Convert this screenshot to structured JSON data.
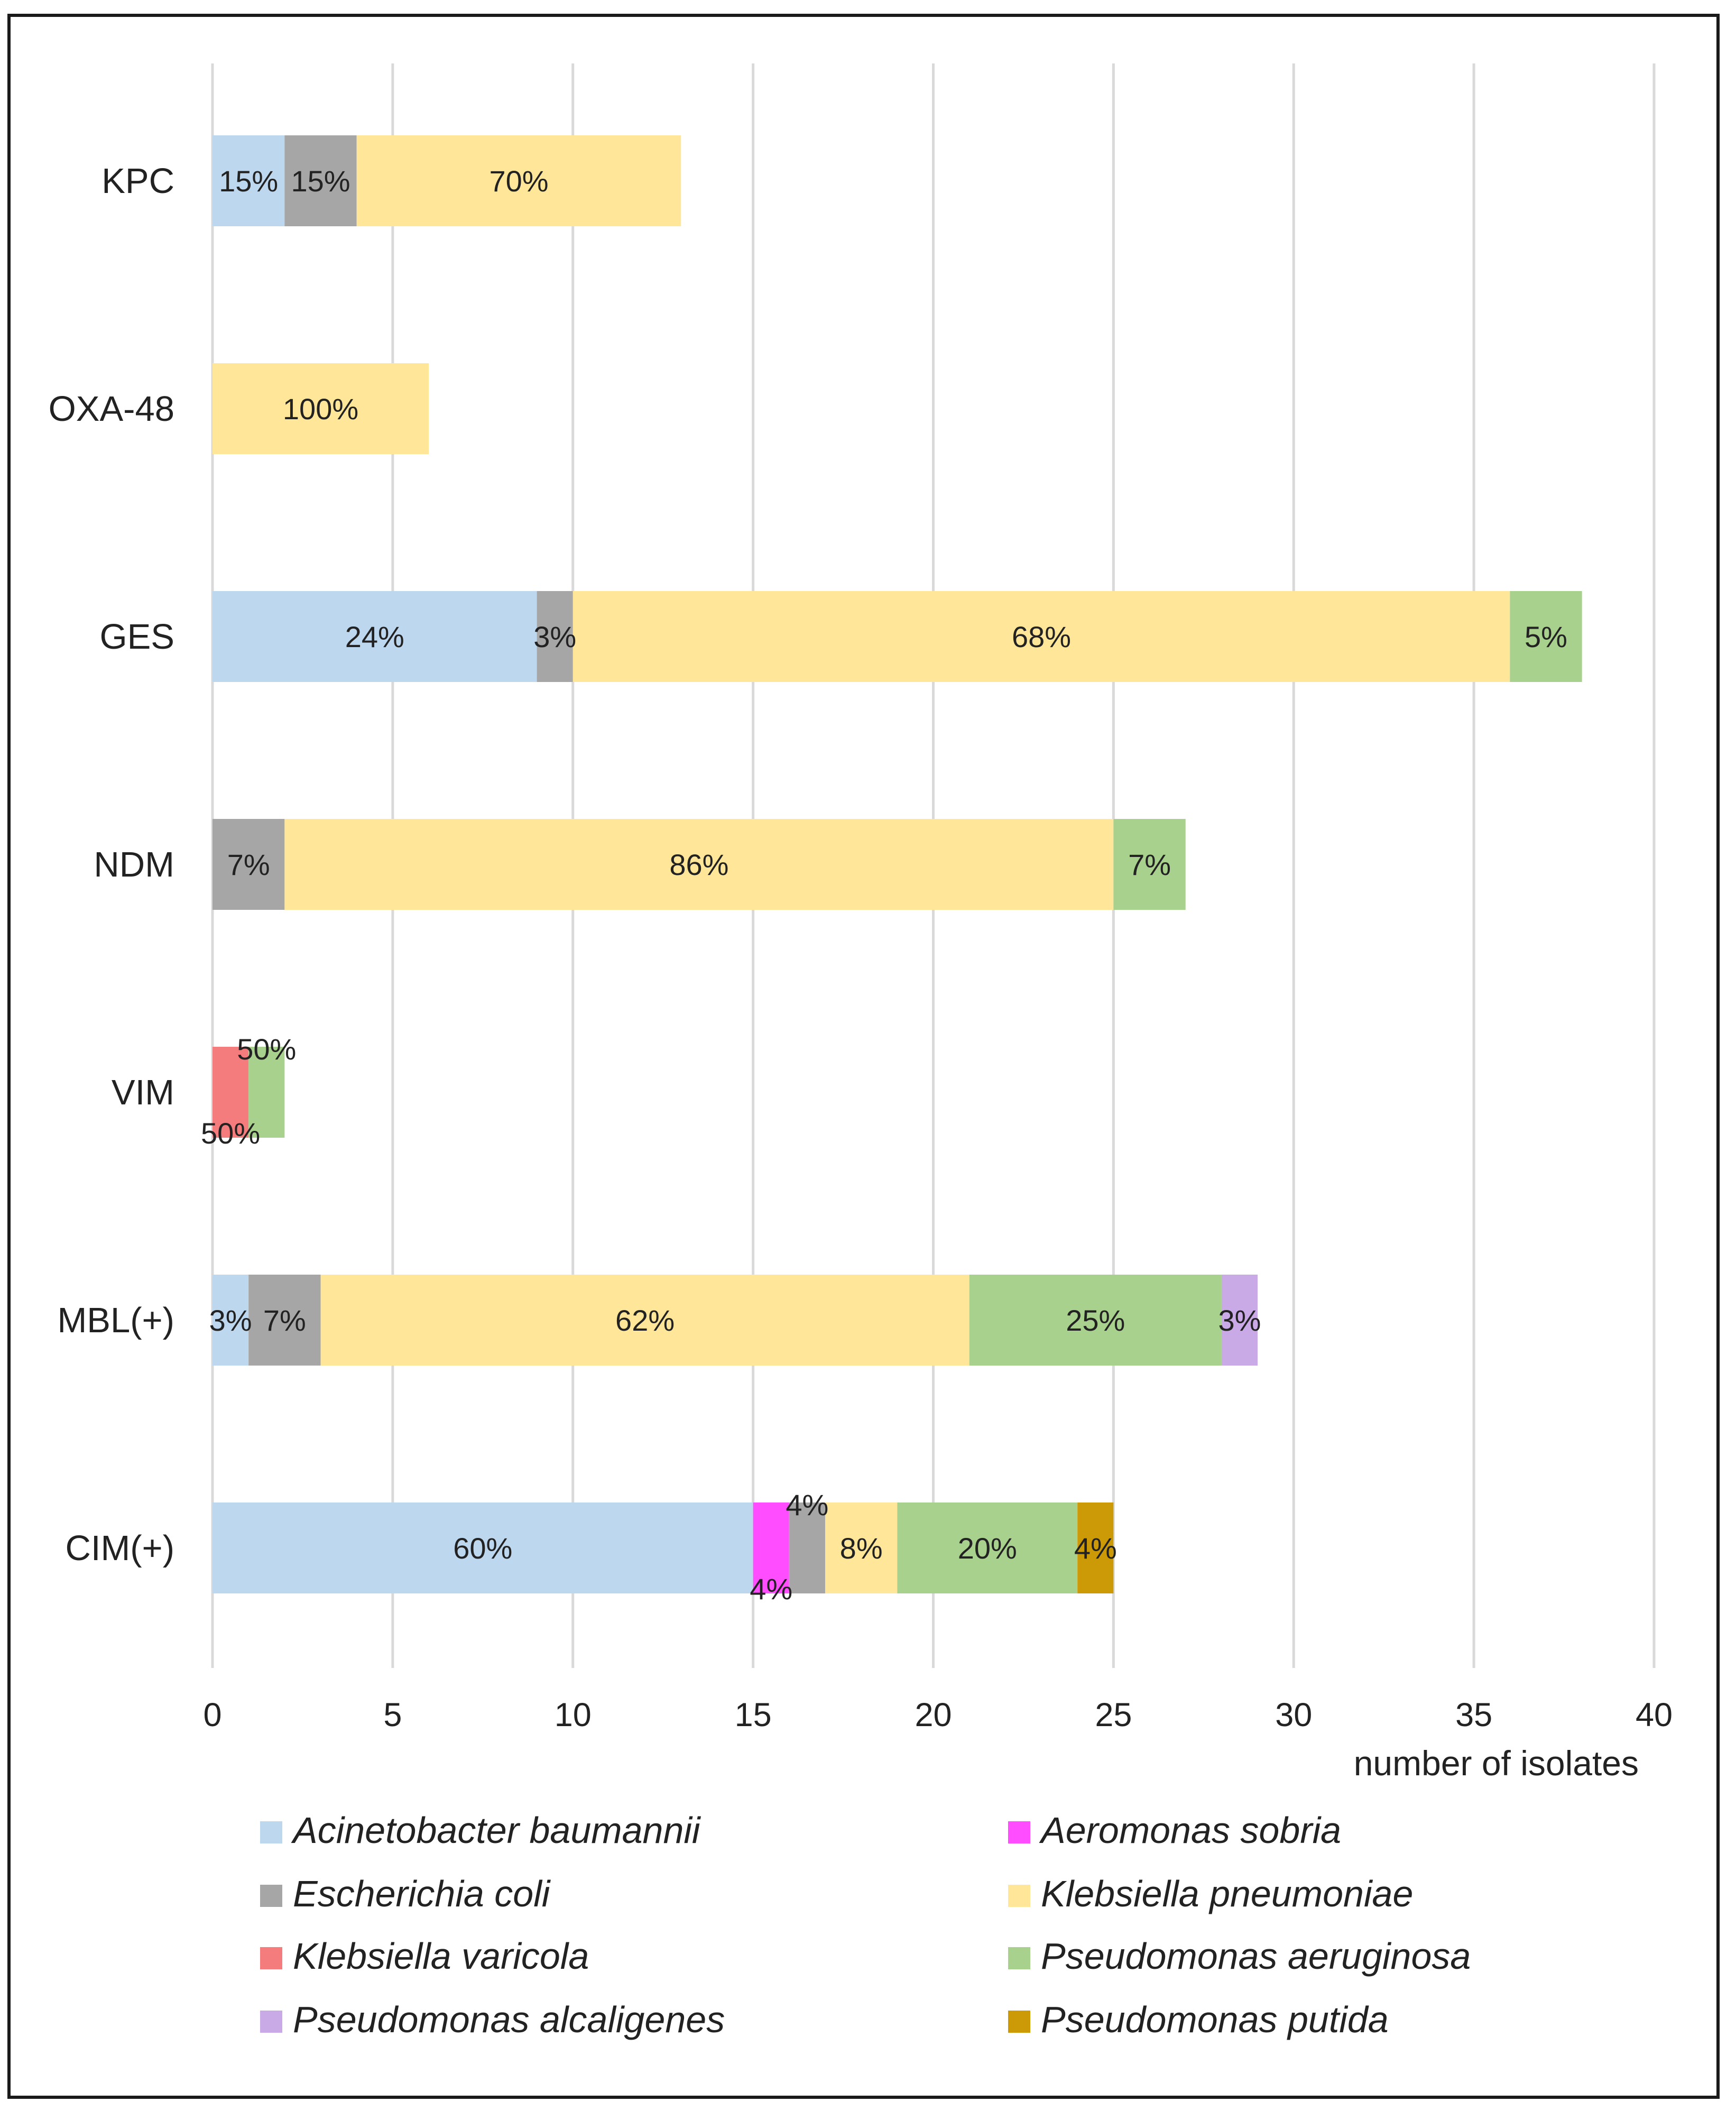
{
  "chart_data": {
    "type": "bar",
    "orientation": "horizontal",
    "stacked": true,
    "title": "",
    "xlabel": "number of isolates",
    "ylabel": "",
    "xlim": [
      0,
      40
    ],
    "x_ticks": [
      0,
      5,
      10,
      15,
      20,
      25,
      30,
      35,
      40
    ],
    "grid": "vertical",
    "legend_position": "bottom",
    "categories": [
      "KPC",
      "OXA-48",
      "GES",
      "NDM",
      "VIM",
      "MBL(+)",
      "CIM(+)"
    ],
    "series": [
      {
        "name": "Acinetobacter baumannii",
        "color": "#bdd7ee",
        "values": [
          2,
          0,
          9,
          0,
          0,
          1,
          15
        ],
        "labels": [
          "15%",
          "",
          "24%",
          "",
          "",
          "3%",
          "60%"
        ]
      },
      {
        "name": "Aeromonas sobria",
        "color": "#ff4dff",
        "values": [
          0,
          0,
          0,
          0,
          0,
          0,
          1
        ],
        "labels": [
          "",
          "",
          "",
          "",
          "",
          "",
          "4%"
        ]
      },
      {
        "name": "Escherichia coli",
        "color": "#a6a6a6",
        "values": [
          2,
          0,
          1,
          2,
          0,
          2,
          1
        ],
        "labels": [
          "15%",
          "",
          "3%",
          "7%",
          "",
          "7%",
          "4%"
        ]
      },
      {
        "name": "Klebsiella pneumoniae",
        "color": "#ffe699",
        "values": [
          9,
          6,
          26,
          23,
          0,
          18,
          2
        ],
        "labels": [
          "70%",
          "100%",
          "68%",
          "86%",
          "",
          "62%",
          "8%"
        ]
      },
      {
        "name": "Klebsiella varicola",
        "color": "#f47c7c",
        "values": [
          0,
          0,
          0,
          0,
          1,
          0,
          0
        ],
        "labels": [
          "",
          "",
          "",
          "",
          "50%",
          "",
          ""
        ]
      },
      {
        "name": "Pseudomonas aeruginosa",
        "color": "#a9d18e",
        "values": [
          0,
          0,
          2,
          2,
          1,
          7,
          5
        ],
        "labels": [
          "",
          "",
          "5%",
          "7%",
          "50%",
          "25%",
          "20%"
        ]
      },
      {
        "name": "Pseudomonas alcaligenes",
        "color": "#c9a9e6",
        "values": [
          0,
          0,
          0,
          0,
          0,
          1,
          0
        ],
        "labels": [
          "",
          "",
          "",
          "",
          "",
          "3%",
          ""
        ]
      },
      {
        "name": "Pseudomonas putida",
        "color": "#cc9a06",
        "values": [
          0,
          0,
          0,
          0,
          0,
          0,
          1
        ],
        "labels": [
          "",
          "",
          "",
          "",
          "",
          "",
          "4%"
        ]
      }
    ]
  },
  "colors": {
    "gridline": "#d9d9d9",
    "text": "#222222",
    "frame": "#1a1a1a"
  }
}
